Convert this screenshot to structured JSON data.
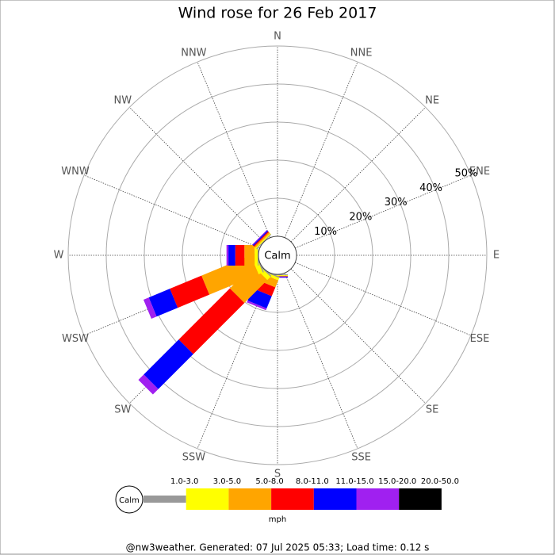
{
  "chart_data": {
    "type": "windrose",
    "title": "Wind rose for 26 Feb 2017",
    "calm_label": "Calm",
    "categories": [
      "N",
      "NNE",
      "NE",
      "ENE",
      "E",
      "ESE",
      "SE",
      "SSE",
      "S",
      "SSW",
      "SW",
      "WSW",
      "W",
      "WNW",
      "NW",
      "NNW"
    ],
    "series": [
      {
        "name": "1.0-3.0",
        "color": "#999999",
        "values": [
          0,
          0,
          0,
          0,
          0,
          0,
          0,
          0,
          0.2,
          0.3,
          0.3,
          0.3,
          0.2,
          0,
          0.2,
          0
        ]
      },
      {
        "name": "3.0-5.0",
        "color": "#ffff00",
        "values": [
          0,
          0,
          0,
          0,
          0,
          0,
          0,
          0,
          0.2,
          0.7,
          1.2,
          1.2,
          0.8,
          0,
          0.3,
          0
        ]
      },
      {
        "name": "5.0-8.0",
        "color": "#ffa500",
        "values": [
          0,
          0,
          0,
          0,
          0,
          0,
          0,
          0,
          0.1,
          2,
          8.5,
          14,
          2.7,
          0,
          0.4,
          0
        ]
      },
      {
        "name": "8.0-11.0",
        "color": "#ff0000",
        "values": [
          0,
          0,
          0,
          0,
          0,
          0,
          0,
          0,
          0.1,
          2.5,
          19,
          9,
          2.4,
          0,
          0.3,
          0
        ]
      },
      {
        "name": "11.0-15.0",
        "color": "#0000ff",
        "values": [
          0,
          0,
          0,
          0,
          0,
          0,
          0,
          0,
          0.2,
          3.5,
          13,
          6,
          1.8,
          0,
          0.3,
          0
        ]
      },
      {
        "name": "15.0-20.0",
        "color": "#a020f0",
        "values": [
          0,
          0,
          0,
          0,
          0,
          0,
          0,
          0,
          0.1,
          0.5,
          2,
          1.5,
          0.5,
          0,
          0.2,
          0
        ]
      },
      {
        "name": "20.0-50.0",
        "color": "#000000",
        "values": [
          0,
          0,
          0,
          0,
          0,
          0,
          0,
          0,
          0,
          0,
          0,
          0,
          0,
          0,
          0,
          0
        ]
      }
    ],
    "ylim": [
      0,
      50
    ],
    "yticks": [
      {
        "value": 10,
        "label": "10%"
      },
      {
        "value": 20,
        "label": "20%"
      },
      {
        "value": 30,
        "label": "30%"
      },
      {
        "value": 40,
        "label": "40%"
      },
      {
        "value": 50,
        "label": "50%"
      }
    ],
    "legend_unit": "mph",
    "footer": "@nw3weather. Generated: 07 Jul 2025 05:33; Load time: 0.12 s"
  }
}
